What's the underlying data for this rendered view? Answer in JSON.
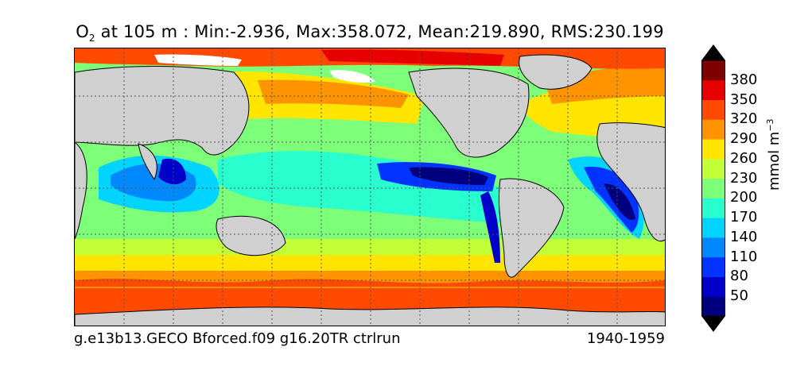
{
  "title": {
    "species": "O",
    "species_sub": "2",
    "depth_text": " at 105 m : ",
    "min_text": "Min:-2.936, ",
    "max_text": "Max:358.072, ",
    "mean_text": "Mean:219.890, ",
    "rms_text": "RMS:230.199"
  },
  "caption": {
    "left": "g.e13b13.GECO Bforced.f09 g16.20TR ctrlrun",
    "right": "1940-1959"
  },
  "colorbar": {
    "unit_main": "mmol m",
    "unit_exp": "−3",
    "ticks": [
      "380",
      "350",
      "320",
      "290",
      "260",
      "230",
      "200",
      "170",
      "140",
      "110",
      "80",
      "50"
    ],
    "levels": [
      {
        "color": "#00007f"
      },
      {
        "color": "#0000c8"
      },
      {
        "color": "#0033ff"
      },
      {
        "color": "#0088ff"
      },
      {
        "color": "#00d4ff"
      },
      {
        "color": "#29ffce"
      },
      {
        "color": "#7dff7a"
      },
      {
        "color": "#c2ff36"
      },
      {
        "color": "#ffe500"
      },
      {
        "color": "#ff9400"
      },
      {
        "color": "#ff4a00"
      },
      {
        "color": "#e60000"
      },
      {
        "color": "#7f0000"
      }
    ]
  },
  "map": {
    "land_color": "#d0d0d0",
    "sea_ice_color": "#ffffff",
    "gridlines": true
  }
}
